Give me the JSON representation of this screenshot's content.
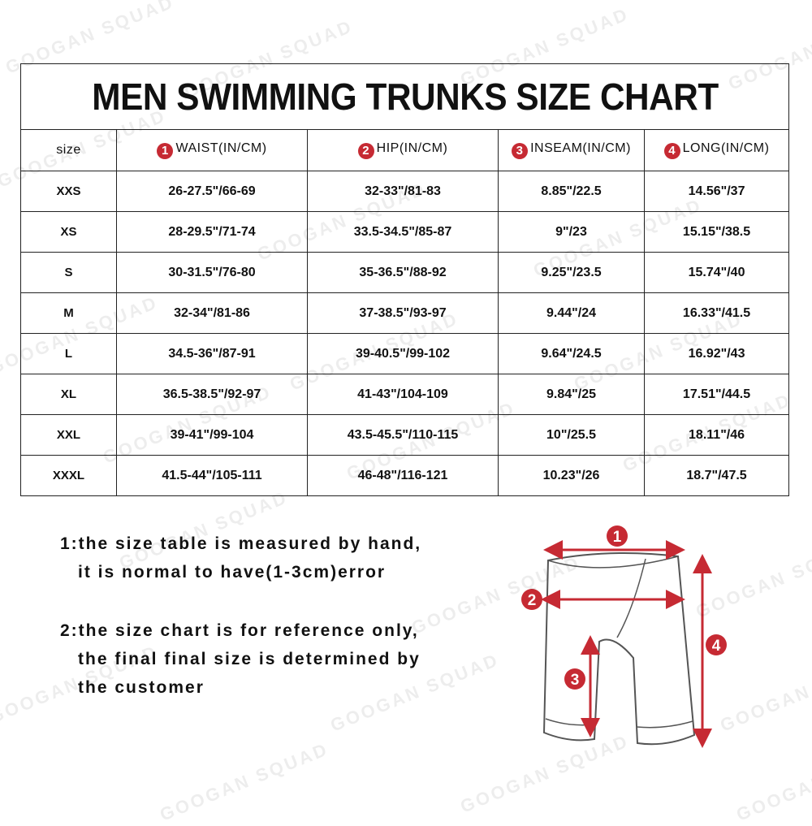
{
  "title": "MEN SWIMMING TRUNKS SIZE CHART",
  "watermark": "GOOGAN SQUAD",
  "accent_color": "#c62a33",
  "headers": [
    {
      "num": "",
      "label": "size"
    },
    {
      "num": "1",
      "label": "WAIST(IN/CM)"
    },
    {
      "num": "2",
      "label": "HIP(IN/CM)"
    },
    {
      "num": "3",
      "label": "INSEAM(IN/CM)"
    },
    {
      "num": "4",
      "label": "LONG(IN/CM)"
    }
  ],
  "rows": [
    [
      "XXS",
      "26-27.5\"/66-69",
      "32-33\"/81-83",
      "8.85\"/22.5",
      "14.56\"/37"
    ],
    [
      "XS",
      "28-29.5\"/71-74",
      "33.5-34.5\"/85-87",
      "9\"/23",
      "15.15\"/38.5"
    ],
    [
      "S",
      "30-31.5\"/76-80",
      "35-36.5\"/88-92",
      "9.25\"/23.5",
      "15.74\"/40"
    ],
    [
      "M",
      "32-34\"/81-86",
      "37-38.5\"/93-97",
      "9.44\"/24",
      "16.33\"/41.5"
    ],
    [
      "L",
      "34.5-36\"/87-91",
      "39-40.5\"/99-102",
      "9.64\"/24.5",
      "16.92\"/43"
    ],
    [
      "XL",
      "36.5-38.5\"/92-97",
      "41-43\"/104-109",
      "9.84\"/25",
      "17.51\"/44.5"
    ],
    [
      "XXL",
      "39-41\"/99-104",
      "43.5-45.5\"/110-115",
      "10\"/25.5",
      "18.11\"/46"
    ],
    [
      "XXXL",
      "41.5-44\"/105-111",
      "46-48\"/116-121",
      "10.23\"/26",
      "18.7\"/47.5"
    ]
  ],
  "notes": [
    {
      "line1": "1:the size table is measured by hand,",
      "line2": "it is normal to have(1-3cm)error",
      "line3": ""
    },
    {
      "line1": "2:the size chart is for reference only,",
      "line2": "the final final size is determined by",
      "line3": "the customer"
    }
  ],
  "diagram": {
    "markers": [
      "1",
      "2",
      "3",
      "4"
    ]
  }
}
